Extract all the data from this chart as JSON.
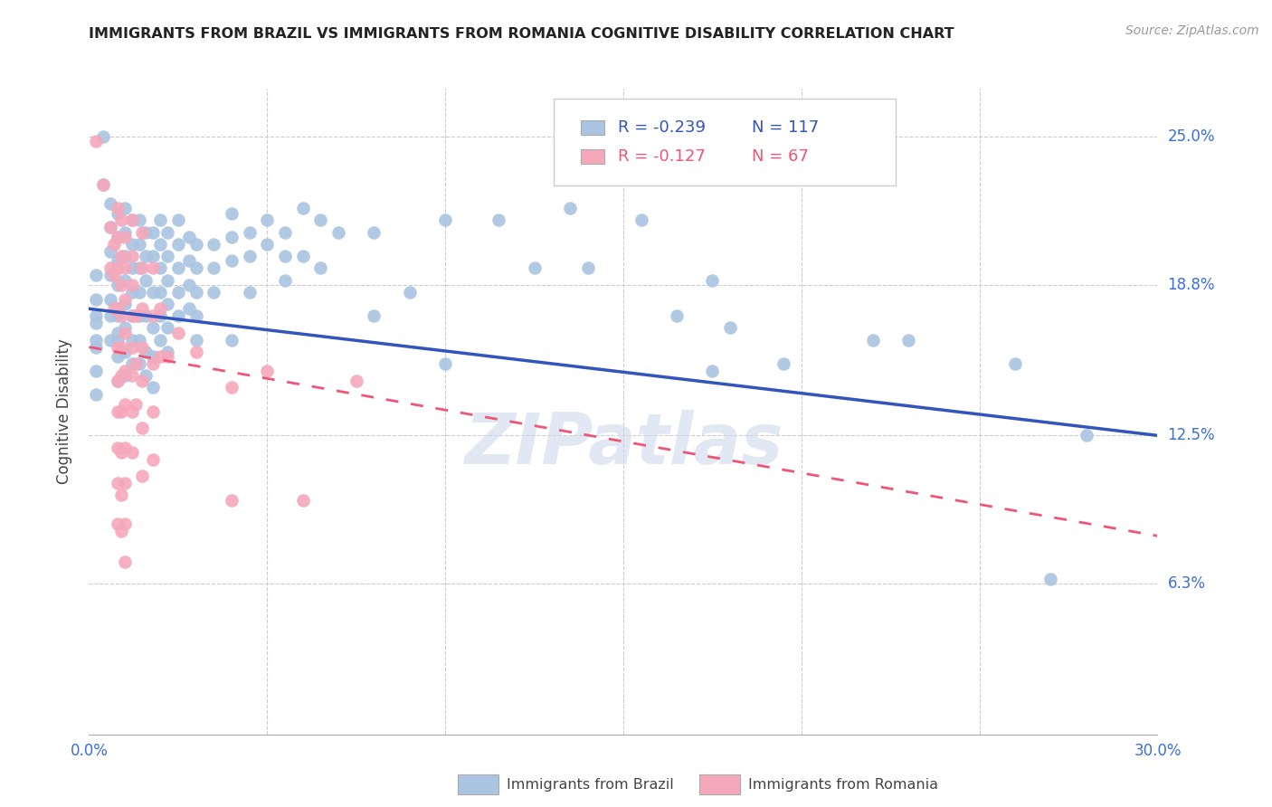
{
  "title": "IMMIGRANTS FROM BRAZIL VS IMMIGRANTS FROM ROMANIA COGNITIVE DISABILITY CORRELATION CHART",
  "source": "Source: ZipAtlas.com",
  "ylabel": "Cognitive Disability",
  "ytick_labels": [
    "25.0%",
    "18.8%",
    "12.5%",
    "6.3%"
  ],
  "ytick_values": [
    0.25,
    0.188,
    0.125,
    0.063
  ],
  "xlim": [
    0.0,
    0.3
  ],
  "ylim": [
    0.0,
    0.27
  ],
  "brazil_R": "-0.239",
  "brazil_N": "117",
  "romania_R": "-0.127",
  "romania_N": "67",
  "brazil_color": "#aac4e2",
  "romania_color": "#f5a8bc",
  "brazil_line_color": "#3355bb",
  "romania_line_color": "#ee5577",
  "legend_label_brazil": "Immigrants from Brazil",
  "legend_label_romania": "Immigrants from Romania",
  "brazil_line": {
    "x0": 0.0,
    "y0": 0.178,
    "x1": 0.3,
    "y1": 0.125
  },
  "romania_line": {
    "x0": 0.0,
    "y0": 0.162,
    "x1": 0.3,
    "y1": 0.083
  },
  "brazil_scatter": [
    [
      0.002,
      0.192
    ],
    [
      0.002,
      0.182
    ],
    [
      0.002,
      0.172
    ],
    [
      0.002,
      0.162
    ],
    [
      0.002,
      0.152
    ],
    [
      0.002,
      0.142
    ],
    [
      0.002,
      0.175
    ],
    [
      0.002,
      0.165
    ],
    [
      0.004,
      0.25
    ],
    [
      0.004,
      0.23
    ],
    [
      0.006,
      0.222
    ],
    [
      0.006,
      0.212
    ],
    [
      0.006,
      0.202
    ],
    [
      0.006,
      0.192
    ],
    [
      0.006,
      0.182
    ],
    [
      0.006,
      0.175
    ],
    [
      0.006,
      0.165
    ],
    [
      0.008,
      0.218
    ],
    [
      0.008,
      0.208
    ],
    [
      0.008,
      0.198
    ],
    [
      0.008,
      0.188
    ],
    [
      0.008,
      0.178
    ],
    [
      0.008,
      0.168
    ],
    [
      0.008,
      0.158
    ],
    [
      0.008,
      0.148
    ],
    [
      0.008,
      0.175
    ],
    [
      0.008,
      0.165
    ],
    [
      0.01,
      0.22
    ],
    [
      0.01,
      0.21
    ],
    [
      0.01,
      0.2
    ],
    [
      0.01,
      0.19
    ],
    [
      0.01,
      0.18
    ],
    [
      0.01,
      0.17
    ],
    [
      0.01,
      0.16
    ],
    [
      0.01,
      0.15
    ],
    [
      0.012,
      0.215
    ],
    [
      0.012,
      0.205
    ],
    [
      0.012,
      0.195
    ],
    [
      0.012,
      0.185
    ],
    [
      0.012,
      0.175
    ],
    [
      0.012,
      0.165
    ],
    [
      0.012,
      0.155
    ],
    [
      0.014,
      0.215
    ],
    [
      0.014,
      0.205
    ],
    [
      0.014,
      0.195
    ],
    [
      0.014,
      0.185
    ],
    [
      0.014,
      0.175
    ],
    [
      0.014,
      0.165
    ],
    [
      0.014,
      0.155
    ],
    [
      0.016,
      0.21
    ],
    [
      0.016,
      0.2
    ],
    [
      0.016,
      0.19
    ],
    [
      0.016,
      0.175
    ],
    [
      0.016,
      0.16
    ],
    [
      0.016,
      0.15
    ],
    [
      0.018,
      0.21
    ],
    [
      0.018,
      0.2
    ],
    [
      0.018,
      0.185
    ],
    [
      0.018,
      0.17
    ],
    [
      0.018,
      0.158
    ],
    [
      0.018,
      0.145
    ],
    [
      0.02,
      0.215
    ],
    [
      0.02,
      0.205
    ],
    [
      0.02,
      0.195
    ],
    [
      0.02,
      0.185
    ],
    [
      0.02,
      0.175
    ],
    [
      0.02,
      0.165
    ],
    [
      0.022,
      0.21
    ],
    [
      0.022,
      0.2
    ],
    [
      0.022,
      0.19
    ],
    [
      0.022,
      0.18
    ],
    [
      0.022,
      0.17
    ],
    [
      0.022,
      0.16
    ],
    [
      0.025,
      0.215
    ],
    [
      0.025,
      0.205
    ],
    [
      0.025,
      0.195
    ],
    [
      0.025,
      0.185
    ],
    [
      0.025,
      0.175
    ],
    [
      0.028,
      0.208
    ],
    [
      0.028,
      0.198
    ],
    [
      0.028,
      0.188
    ],
    [
      0.028,
      0.178
    ],
    [
      0.03,
      0.205
    ],
    [
      0.03,
      0.195
    ],
    [
      0.03,
      0.185
    ],
    [
      0.03,
      0.175
    ],
    [
      0.03,
      0.165
    ],
    [
      0.035,
      0.205
    ],
    [
      0.035,
      0.195
    ],
    [
      0.035,
      0.185
    ],
    [
      0.04,
      0.218
    ],
    [
      0.04,
      0.208
    ],
    [
      0.04,
      0.198
    ],
    [
      0.04,
      0.165
    ],
    [
      0.045,
      0.21
    ],
    [
      0.045,
      0.2
    ],
    [
      0.045,
      0.185
    ],
    [
      0.05,
      0.215
    ],
    [
      0.05,
      0.205
    ],
    [
      0.055,
      0.21
    ],
    [
      0.055,
      0.2
    ],
    [
      0.055,
      0.19
    ],
    [
      0.06,
      0.22
    ],
    [
      0.06,
      0.2
    ],
    [
      0.065,
      0.215
    ],
    [
      0.065,
      0.195
    ],
    [
      0.07,
      0.21
    ],
    [
      0.08,
      0.21
    ],
    [
      0.08,
      0.175
    ],
    [
      0.09,
      0.185
    ],
    [
      0.1,
      0.215
    ],
    [
      0.1,
      0.155
    ],
    [
      0.115,
      0.215
    ],
    [
      0.125,
      0.195
    ],
    [
      0.135,
      0.22
    ],
    [
      0.14,
      0.195
    ],
    [
      0.155,
      0.215
    ],
    [
      0.165,
      0.175
    ],
    [
      0.175,
      0.19
    ],
    [
      0.175,
      0.152
    ],
    [
      0.18,
      0.17
    ],
    [
      0.195,
      0.155
    ],
    [
      0.22,
      0.165
    ],
    [
      0.23,
      0.165
    ],
    [
      0.26,
      0.155
    ],
    [
      0.27,
      0.065
    ],
    [
      0.28,
      0.125
    ]
  ],
  "romania_scatter": [
    [
      0.002,
      0.248
    ],
    [
      0.004,
      0.23
    ],
    [
      0.006,
      0.212
    ],
    [
      0.006,
      0.195
    ],
    [
      0.007,
      0.205
    ],
    [
      0.007,
      0.192
    ],
    [
      0.007,
      0.178
    ],
    [
      0.008,
      0.22
    ],
    [
      0.008,
      0.208
    ],
    [
      0.008,
      0.195
    ],
    [
      0.008,
      0.178
    ],
    [
      0.008,
      0.162
    ],
    [
      0.008,
      0.148
    ],
    [
      0.008,
      0.135
    ],
    [
      0.008,
      0.12
    ],
    [
      0.008,
      0.105
    ],
    [
      0.008,
      0.088
    ],
    [
      0.009,
      0.215
    ],
    [
      0.009,
      0.2
    ],
    [
      0.009,
      0.188
    ],
    [
      0.009,
      0.175
    ],
    [
      0.009,
      0.162
    ],
    [
      0.009,
      0.15
    ],
    [
      0.009,
      0.135
    ],
    [
      0.009,
      0.118
    ],
    [
      0.009,
      0.1
    ],
    [
      0.009,
      0.085
    ],
    [
      0.01,
      0.208
    ],
    [
      0.01,
      0.195
    ],
    [
      0.01,
      0.182
    ],
    [
      0.01,
      0.168
    ],
    [
      0.01,
      0.152
    ],
    [
      0.01,
      0.138
    ],
    [
      0.01,
      0.12
    ],
    [
      0.01,
      0.105
    ],
    [
      0.01,
      0.088
    ],
    [
      0.01,
      0.072
    ],
    [
      0.012,
      0.215
    ],
    [
      0.012,
      0.2
    ],
    [
      0.012,
      0.188
    ],
    [
      0.012,
      0.175
    ],
    [
      0.012,
      0.162
    ],
    [
      0.012,
      0.15
    ],
    [
      0.012,
      0.135
    ],
    [
      0.012,
      0.118
    ],
    [
      0.013,
      0.175
    ],
    [
      0.013,
      0.155
    ],
    [
      0.013,
      0.138
    ],
    [
      0.015,
      0.21
    ],
    [
      0.015,
      0.195
    ],
    [
      0.015,
      0.178
    ],
    [
      0.015,
      0.162
    ],
    [
      0.015,
      0.148
    ],
    [
      0.015,
      0.128
    ],
    [
      0.015,
      0.108
    ],
    [
      0.018,
      0.195
    ],
    [
      0.018,
      0.175
    ],
    [
      0.018,
      0.155
    ],
    [
      0.018,
      0.135
    ],
    [
      0.018,
      0.115
    ],
    [
      0.02,
      0.178
    ],
    [
      0.02,
      0.158
    ],
    [
      0.022,
      0.158
    ],
    [
      0.025,
      0.168
    ],
    [
      0.03,
      0.16
    ],
    [
      0.04,
      0.145
    ],
    [
      0.04,
      0.098
    ],
    [
      0.05,
      0.152
    ],
    [
      0.06,
      0.098
    ],
    [
      0.075,
      0.148
    ]
  ]
}
